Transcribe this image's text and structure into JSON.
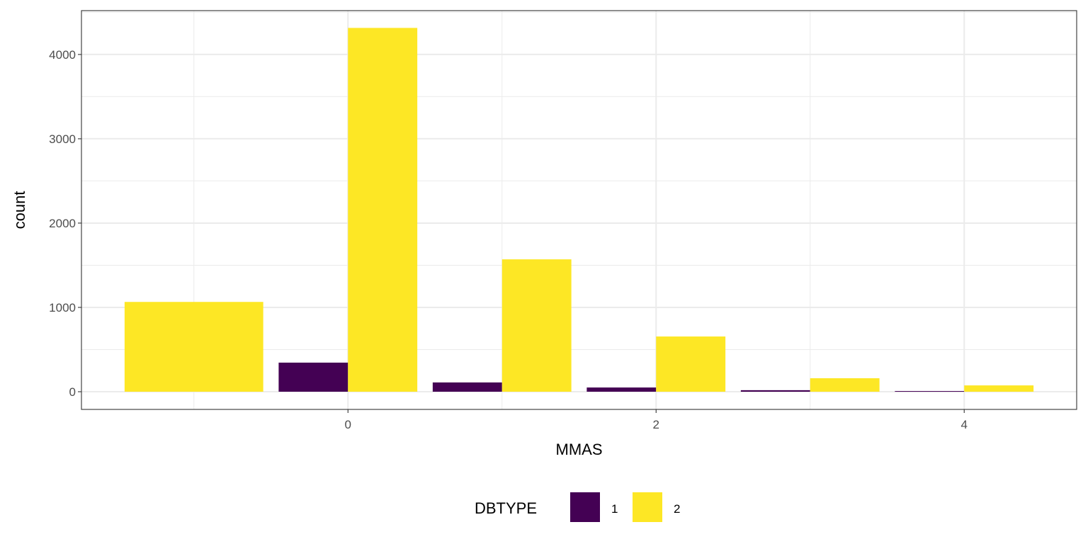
{
  "chart_data": {
    "type": "bar",
    "title": "",
    "xlabel": "MMAS",
    "ylabel": "count",
    "xlim": [
      -1.73,
      4.73
    ],
    "ylim": [
      -210,
      4520
    ],
    "x_ticks": [
      0,
      2,
      4
    ],
    "y_ticks": [
      0,
      1000,
      2000,
      3000,
      4000
    ],
    "grid": true,
    "legend": {
      "title": "DBTYPE",
      "position": "bottom",
      "entries": [
        "1",
        "2"
      ]
    },
    "x": [
      -1,
      0,
      1,
      2,
      3,
      4
    ],
    "series": [
      {
        "name": "1",
        "color": "#440154",
        "values": [
          0,
          345,
          110,
          50,
          18,
          8
        ]
      },
      {
        "name": "2",
        "color": "#FDE725",
        "values": [
          1065,
          4315,
          1570,
          655,
          160,
          75
        ]
      }
    ]
  }
}
